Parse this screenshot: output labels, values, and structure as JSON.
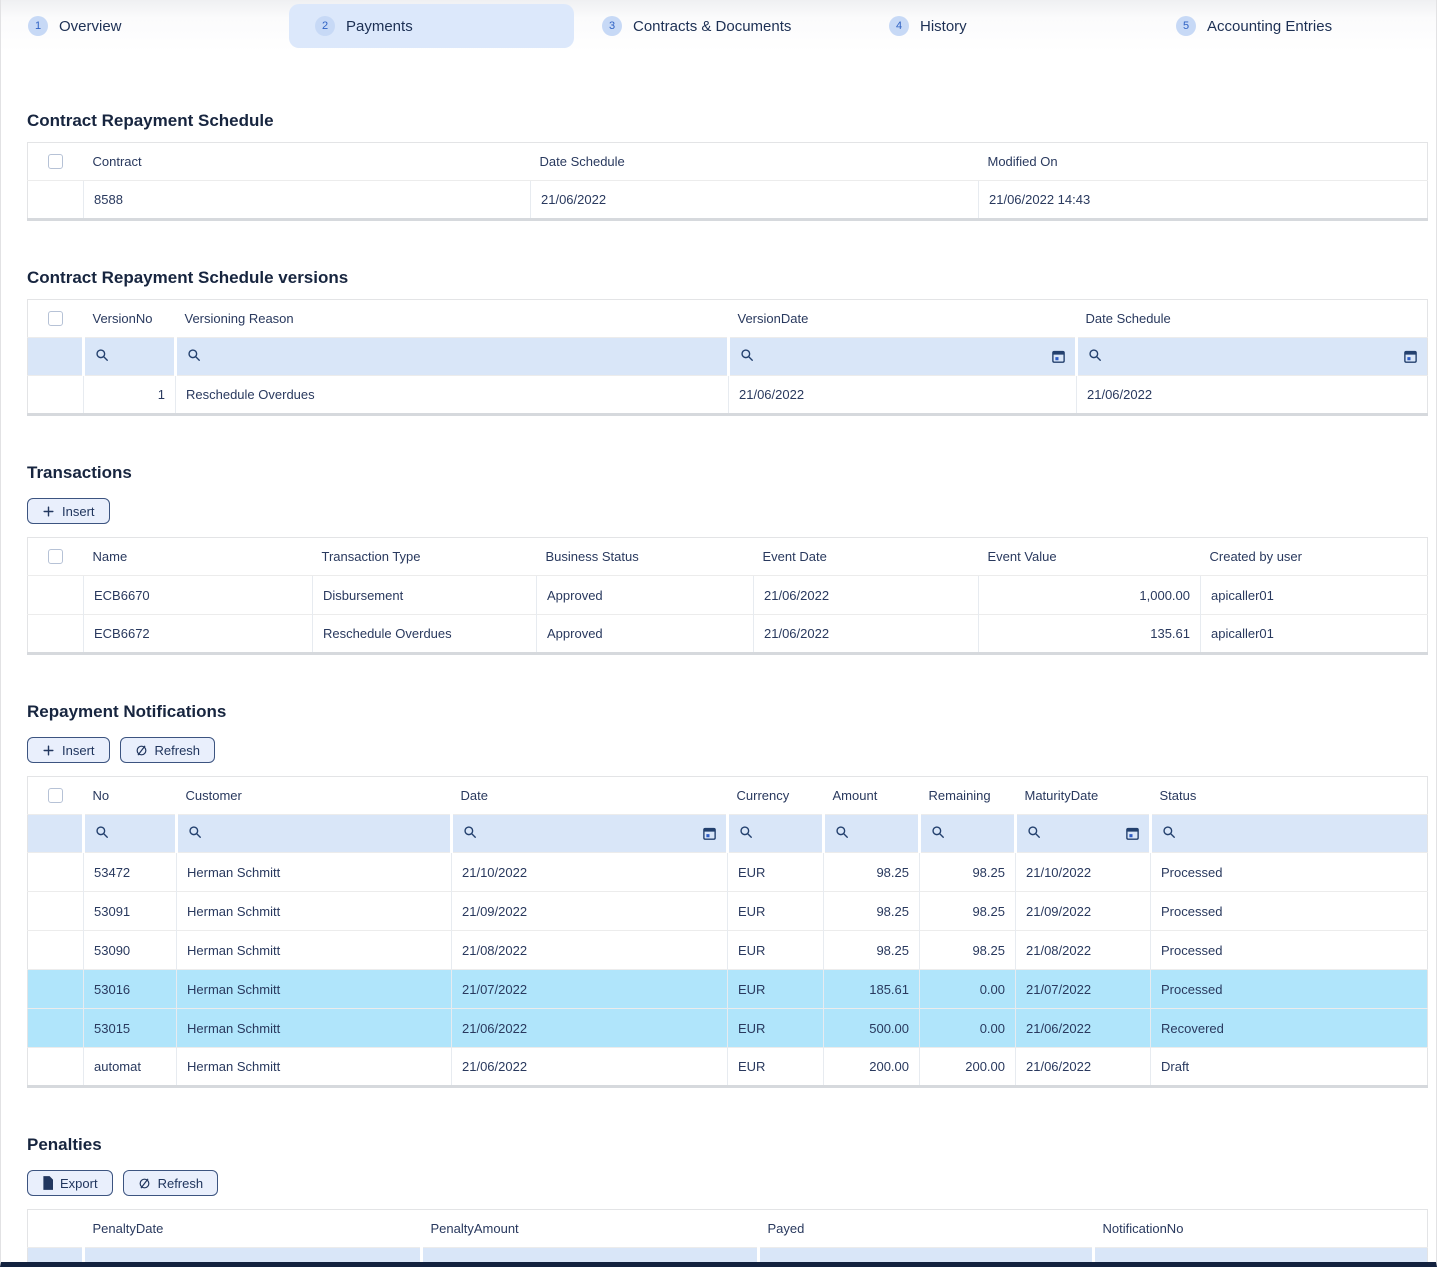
{
  "tabs": [
    {
      "num": "1",
      "label": "Overview",
      "active": false
    },
    {
      "num": "2",
      "label": "Payments",
      "active": true
    },
    {
      "num": "3",
      "label": "Contracts & Documents",
      "active": false
    },
    {
      "num": "4",
      "label": "History",
      "active": false
    },
    {
      "num": "5",
      "label": "Accounting Entries",
      "active": false
    }
  ],
  "schedule": {
    "title": "Contract Repayment Schedule",
    "columns": [
      "Contract",
      "Date Schedule",
      "Modified On"
    ],
    "rows": [
      [
        "8588",
        "21/06/2022",
        "21/06/2022 14:43"
      ]
    ]
  },
  "versions": {
    "title": "Contract Repayment Schedule versions",
    "columns": [
      "VersionNo",
      "Versioning Reason",
      "VersionDate",
      "Date Schedule"
    ],
    "rows": [
      [
        "1",
        "Reschedule Overdues",
        "21/06/2022",
        "21/06/2022"
      ]
    ]
  },
  "transactions": {
    "title": "Transactions",
    "insert_label": "Insert",
    "columns": [
      "Name",
      "Transaction Type",
      "Business Status",
      "Event Date",
      "Event Value",
      "Created by user"
    ],
    "rows": [
      [
        "ECB6670",
        "Disbursement",
        "Approved",
        "21/06/2022",
        "1,000.00",
        "apicaller01"
      ],
      [
        "ECB6672",
        "Reschedule Overdues",
        "Approved",
        "21/06/2022",
        "135.61",
        "apicaller01"
      ]
    ]
  },
  "notifications": {
    "title": "Repayment Notifications",
    "insert_label": "Insert",
    "refresh_label": "Refresh",
    "columns": [
      "No",
      "Customer",
      "Date",
      "Currency",
      "Amount",
      "Remaining",
      "MaturityDate",
      "Status"
    ],
    "rows": [
      {
        "cells": [
          "53472",
          "Herman Schmitt",
          "21/10/2022",
          "EUR",
          "98.25",
          "98.25",
          "21/10/2022",
          "Processed"
        ],
        "highlighted": false
      },
      {
        "cells": [
          "53091",
          "Herman Schmitt",
          "21/09/2022",
          "EUR",
          "98.25",
          "98.25",
          "21/09/2022",
          "Processed"
        ],
        "highlighted": false
      },
      {
        "cells": [
          "53090",
          "Herman Schmitt",
          "21/08/2022",
          "EUR",
          "98.25",
          "98.25",
          "21/08/2022",
          "Processed"
        ],
        "highlighted": false
      },
      {
        "cells": [
          "53016",
          "Herman Schmitt",
          "21/07/2022",
          "EUR",
          "185.61",
          "0.00",
          "21/07/2022",
          "Processed"
        ],
        "highlighted": true
      },
      {
        "cells": [
          "53015",
          "Herman Schmitt",
          "21/06/2022",
          "EUR",
          "500.00",
          "0.00",
          "21/06/2022",
          "Recovered"
        ],
        "highlighted": true
      },
      {
        "cells": [
          "automat",
          "Herman Schmitt",
          "21/06/2022",
          "EUR",
          "200.00",
          "200.00",
          "21/06/2022",
          "Draft"
        ],
        "highlighted": false
      }
    ]
  },
  "penalties": {
    "title": "Penalties",
    "export_label": "Export",
    "refresh_label": "Refresh",
    "columns": [
      "PenaltyDate",
      "PenaltyAmount",
      "Payed",
      "NotificationNo"
    ],
    "rows": []
  },
  "colors": {
    "accent_blue": "#2f62c4",
    "tab_active_bg": "#dce8fb",
    "badge_bg": "#c7d9f6",
    "filter_row_bg": "#d9e6f8",
    "highlight_row_bg": "#b0e5fb",
    "text_navy": "#29395e",
    "bottom_edge": "#13223f"
  },
  "icons": {
    "search-icon": "magnifier",
    "calendar-icon": "calendar",
    "plus-icon": "plus",
    "refresh-icon": "slashed-circle-arrow",
    "export-icon": "document",
    "checkbox-icon": "empty-checkbox"
  }
}
